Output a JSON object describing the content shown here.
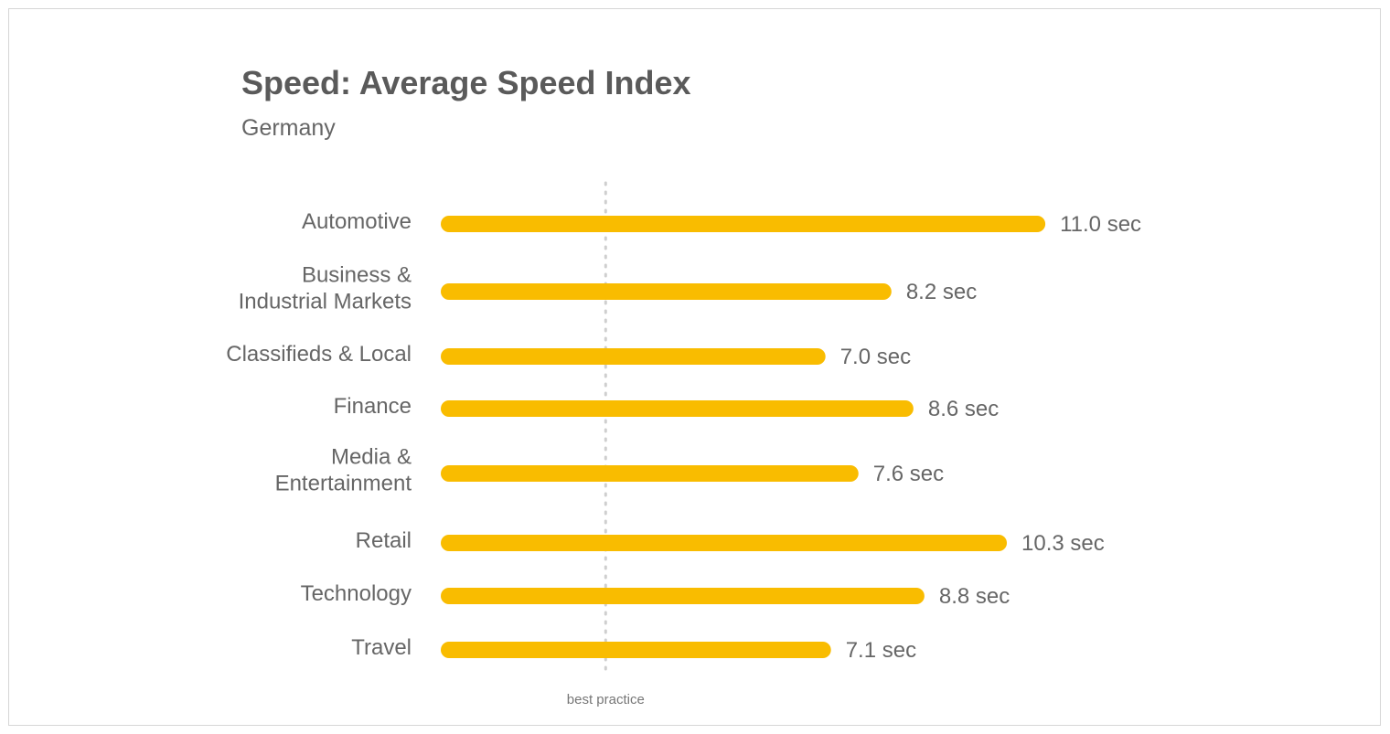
{
  "header": {
    "title": "Speed: Average Speed Index",
    "subtitle": "Germany"
  },
  "chart_data": {
    "type": "bar",
    "orientation": "horizontal",
    "title": "Speed: Average Speed Index",
    "subtitle": "Germany",
    "categories": [
      [
        "Automotive"
      ],
      [
        "Business &",
        "Industrial Markets"
      ],
      [
        "Classifieds & Local"
      ],
      [
        "Finance"
      ],
      [
        "Media &",
        "Entertainment"
      ],
      [
        "Retail"
      ],
      [
        "Technology"
      ],
      [
        "Travel"
      ]
    ],
    "values": [
      11.0,
      8.2,
      7.0,
      8.6,
      7.6,
      10.3,
      8.8,
      7.1
    ],
    "value_labels": [
      "11.0 sec",
      "8.2 sec",
      "7.0 sec",
      "8.6 sec",
      "7.6 sec",
      "10.3 sec",
      "8.8 sec",
      "7.1 sec"
    ],
    "unit": "sec",
    "bar_color": "#F9BC00",
    "reference_line": {
      "label": "best practice",
      "value": 3.0,
      "style": "dotted",
      "color": "#cfcfcf"
    },
    "xlim": [
      0,
      11.0
    ],
    "grid": false,
    "legend": "none"
  }
}
